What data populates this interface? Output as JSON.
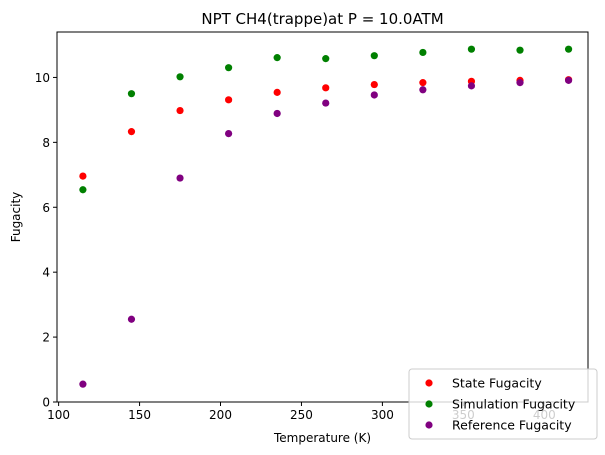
{
  "chart_data": {
    "type": "scatter",
    "title": "NPT CH4(trappe)at P = 10.0ATM",
    "xlabel": "Temperature (K)",
    "ylabel": "Fugacity",
    "xlim": [
      99,
      427
    ],
    "ylim": [
      0,
      11.4
    ],
    "xticks": [
      100,
      150,
      200,
      250,
      300,
      350,
      400
    ],
    "yticks": [
      0,
      2,
      4,
      6,
      8,
      10
    ],
    "grid": false,
    "legend_position": "bottom-right",
    "series": [
      {
        "name": "State Fugacity",
        "color": "#ff0000",
        "x": [
          115,
          145,
          175,
          205,
          235,
          265,
          295,
          325,
          355,
          385,
          415
        ],
        "y": [
          6.96,
          8.33,
          8.98,
          9.31,
          9.54,
          9.68,
          9.78,
          9.84,
          9.88,
          9.91,
          9.93
        ]
      },
      {
        "name": "Simulation Fugacity",
        "color": "#008000",
        "x": [
          115,
          145,
          175,
          205,
          235,
          265,
          295,
          325,
          355,
          385,
          415
        ],
        "y": [
          6.54,
          9.5,
          10.02,
          10.3,
          10.61,
          10.58,
          10.67,
          10.77,
          10.87,
          10.84,
          10.87
        ]
      },
      {
        "name": "Reference Fugacity",
        "color": "#800080",
        "x": [
          115,
          145,
          175,
          205,
          235,
          265,
          295,
          325,
          355,
          385,
          415
        ],
        "y": [
          0.55,
          2.55,
          6.9,
          8.27,
          8.89,
          9.21,
          9.46,
          9.62,
          9.74,
          9.84,
          9.91
        ]
      }
    ]
  }
}
